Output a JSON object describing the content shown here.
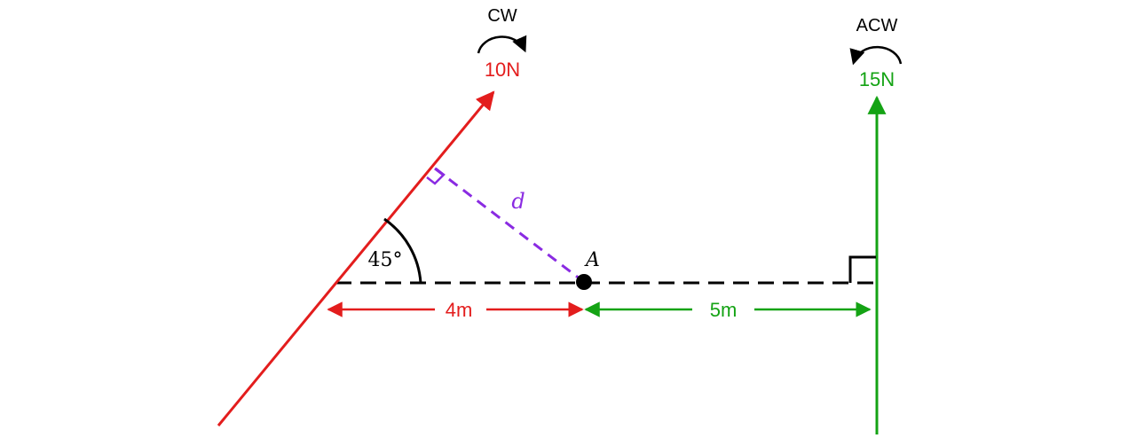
{
  "forces": {
    "left": {
      "magnitude": "10N",
      "direction": "CW",
      "color": "#e31d1d"
    },
    "right": {
      "magnitude": "15N",
      "direction": "ACW",
      "color": "#14a314"
    }
  },
  "angle_label": "45°",
  "pivot_label": "A",
  "perpendicular_label": "d",
  "distances": {
    "left": "4m",
    "right": "5m"
  },
  "colors": {
    "perpendicular": "#8a2be2",
    "baseline": "#000000"
  }
}
